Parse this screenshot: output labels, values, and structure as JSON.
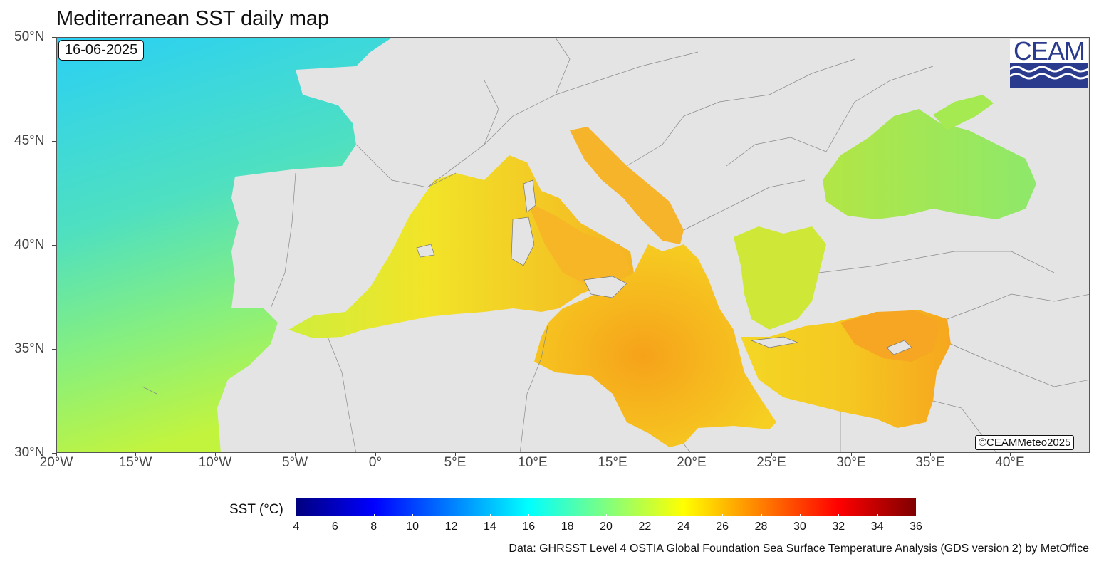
{
  "title": "Mediterranean SST daily map",
  "date": "16-06-2025",
  "logo_text": "CEAM",
  "copyright": "©CEAMMeteo2025",
  "lat_labels": [
    "50°N",
    "45°N",
    "40°N",
    "35°N",
    "30°N"
  ],
  "lon_labels": [
    "20°W",
    "15°W",
    "10°W",
    "5°W",
    "0°",
    "5°E",
    "10°E",
    "15°E",
    "20°E",
    "25°E",
    "30°E",
    "35°E",
    "40°E"
  ],
  "colorbar": {
    "label": "SST (°C)",
    "ticks": [
      "4",
      "6",
      "8",
      "10",
      "12",
      "14",
      "16",
      "18",
      "20",
      "22",
      "24",
      "26",
      "28",
      "30",
      "32",
      "34",
      "36"
    ],
    "range": [
      4,
      36
    ]
  },
  "source": "Data: GHRSST Level 4 OSTIA Global Foundation Sea Surface Temperature Analysis (GDS version 2) by MetOffice",
  "colors": {
    "land": "#e4e4e4",
    "atlantic_north": "#3fd8ef",
    "atlantic_south": "#b8f24a",
    "western_med": "#f5e62a",
    "central_med": "#f7a81e",
    "eastern_med": "#f6c020",
    "black_sea": "#a8e84a",
    "aegean": "#c6ea3a"
  }
}
